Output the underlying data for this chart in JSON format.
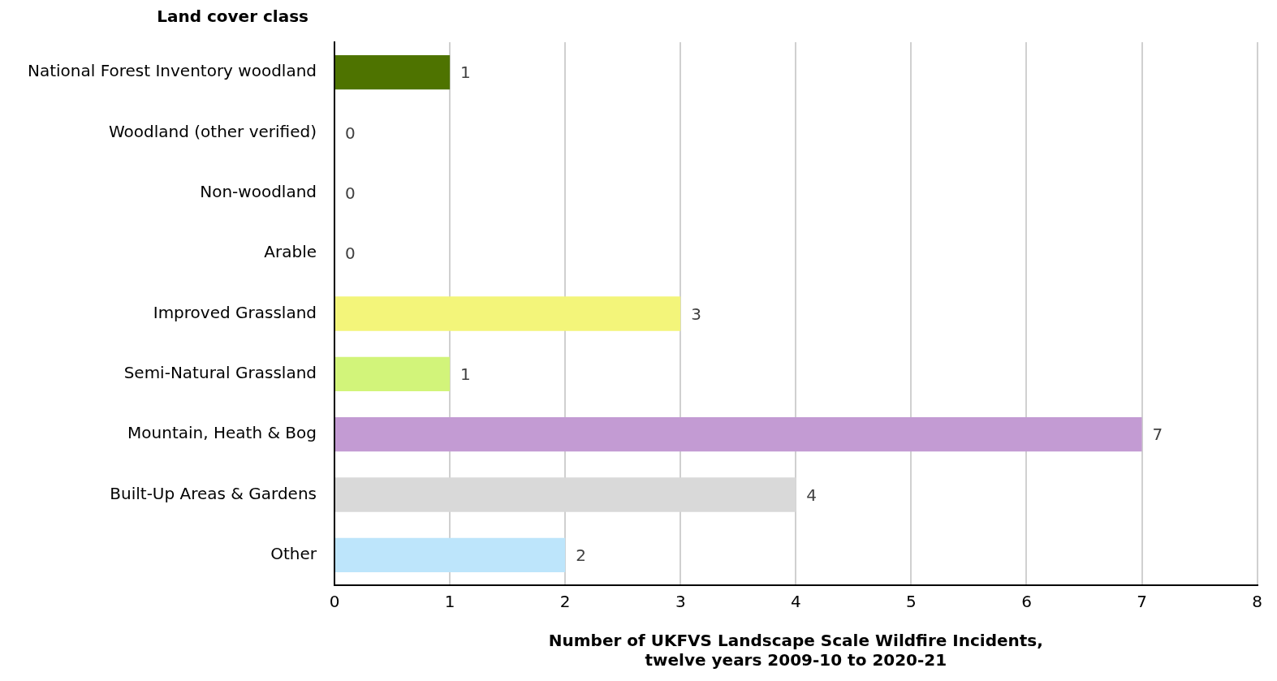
{
  "chart_data": {
    "type": "bar",
    "orientation": "horizontal",
    "ylabel": "Land cover class",
    "xlabel": "Number of UKFVS Landscape Scale Wildfire Incidents,\ntwelve years 2009-10 to 2020-21",
    "categories": [
      "National Forest Inventory woodland",
      "Woodland (other verified)",
      "Non-woodland",
      "Arable",
      "Improved Grassland",
      "Semi-Natural Grassland",
      "Mountain, Heath & Bog",
      "Built-Up Areas & Gardens",
      "Other"
    ],
    "values": [
      1,
      0,
      0,
      0,
      3,
      1,
      7,
      4,
      2
    ],
    "colors": [
      "#4e7300",
      "#4e7300",
      "#4e7300",
      "#4e7300",
      "#f3f57a",
      "#d2f47a",
      "#c39bd3",
      "#d9d9d9",
      "#bde5fb"
    ],
    "xlim": [
      0,
      8
    ],
    "xticks": [
      0,
      1,
      2,
      3,
      4,
      5,
      6,
      7,
      8
    ],
    "grid": "x",
    "data_labels": true,
    "legend": false
  }
}
